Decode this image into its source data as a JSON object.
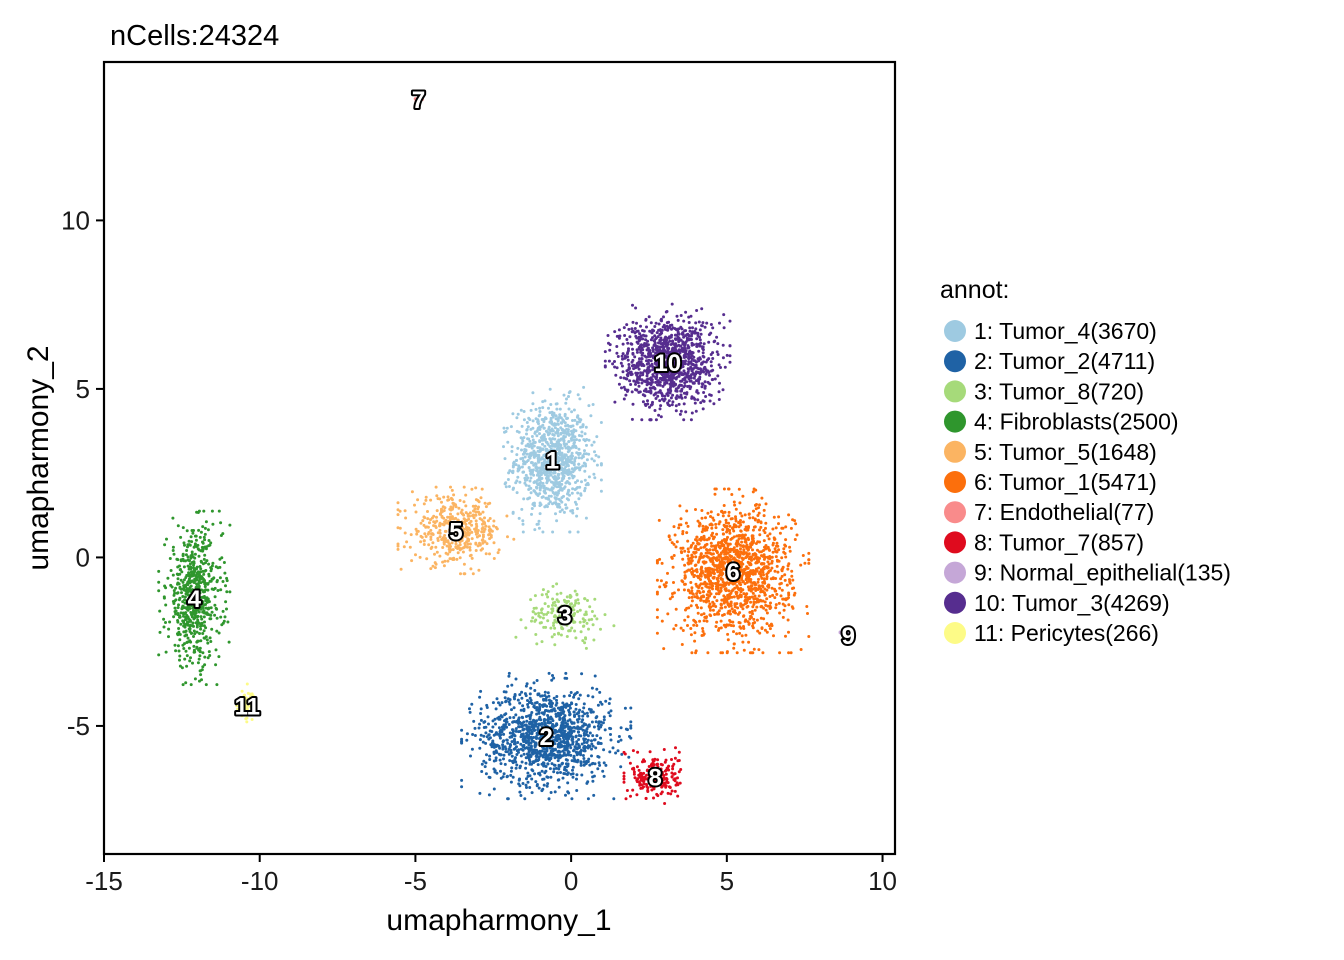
{
  "chart_data": {
    "type": "scatter",
    "title": "nCells:24324",
    "xlabel": "umapharmony_1",
    "ylabel": "umapharmony_2",
    "xlim": [
      -15,
      10.4
    ],
    "ylim": [
      -8.8,
      14.7
    ],
    "xticks": [
      -15,
      -10,
      -5,
      0,
      5,
      10
    ],
    "xtick_labels": [
      "-15",
      "-10",
      "-5",
      "0",
      "5",
      "10"
    ],
    "yticks": [
      -5,
      0,
      5,
      10
    ],
    "ytick_labels": [
      "-5",
      "0",
      "5",
      "10"
    ],
    "grid": false,
    "legend_title": "annot:",
    "legend_position": "right",
    "series": [
      {
        "id": "1",
        "label": "1: Tumor_4(3670)",
        "count": 3670,
        "color": "#9ECAE1",
        "center": [
          -0.6,
          2.9
        ],
        "spread": [
          1.1,
          1.5
        ]
      },
      {
        "id": "2",
        "label": "2: Tumor_2(4711)",
        "count": 4711,
        "color": "#1F62A5",
        "center": [
          -0.8,
          -5.3
        ],
        "spread": [
          1.9,
          1.3
        ]
      },
      {
        "id": "3",
        "label": "3: Tumor_8(720)",
        "count": 720,
        "color": "#A6DA7A",
        "center": [
          -0.2,
          -1.7
        ],
        "spread": [
          1.1,
          0.7
        ]
      },
      {
        "id": "4",
        "label": "4: Fibroblasts(2500)",
        "count": 2500,
        "color": "#2F962D",
        "center": [
          -12.1,
          -1.2
        ],
        "spread": [
          0.8,
          1.8
        ]
      },
      {
        "id": "5",
        "label": "5: Tumor_5(1648)",
        "count": 1648,
        "color": "#FBB462",
        "center": [
          -3.7,
          0.8
        ],
        "spread": [
          1.3,
          0.9
        ]
      },
      {
        "id": "6",
        "label": "6: Tumor_1(5471)",
        "count": 5471,
        "color": "#FC6F0C",
        "center": [
          5.2,
          -0.4
        ],
        "spread": [
          1.7,
          1.7
        ]
      },
      {
        "id": "7",
        "label": "7: Endothelial(77)",
        "count": 77,
        "color": "#F98B8B",
        "center": [
          -4.9,
          13.6
        ],
        "spread": [
          0.1,
          0.1
        ]
      },
      {
        "id": "8",
        "label": "8: Tumor_7(857)",
        "count": 857,
        "color": "#DF0B1E",
        "center": [
          2.7,
          -6.5
        ],
        "spread": [
          0.7,
          0.6
        ]
      },
      {
        "id": "9",
        "label": "9: Normal_epithelial(135)",
        "count": 135,
        "color": "#C5A7D7",
        "center": [
          8.9,
          -2.3
        ],
        "spread": [
          0.2,
          0.15
        ]
      },
      {
        "id": "10",
        "label": "10: Tumor_3(4269)",
        "count": 4269,
        "color": "#562D8F",
        "center": [
          3.1,
          5.8
        ],
        "spread": [
          1.4,
          1.2
        ]
      },
      {
        "id": "11",
        "label": "11: Pericytes(266)",
        "count": 266,
        "color": "#FDFB87",
        "center": [
          -10.4,
          -4.4
        ],
        "spread": [
          0.3,
          0.45
        ]
      }
    ]
  }
}
